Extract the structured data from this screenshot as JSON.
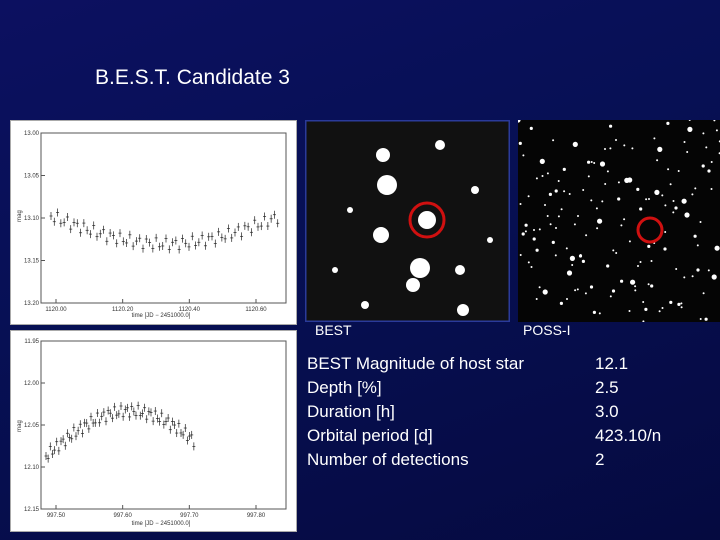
{
  "header": {
    "title": "B.E.S.T. Candidate 3"
  },
  "plots": [
    {
      "y_ticks": [
        "13.00",
        "13.05",
        "13.10",
        "13.15",
        "13.20"
      ],
      "x_ticks": [
        "1120.00",
        "1120.20",
        "1120.40",
        "1120.60"
      ],
      "x_label": "time [JD − 2451000.0]",
      "y_label": "mag"
    },
    {
      "y_ticks": [
        "11.95",
        "12.00",
        "12.05",
        "12.10",
        "12.15"
      ],
      "x_ticks": [
        "997.50",
        "997.60",
        "997.70",
        "997.80"
      ],
      "x_label": "time [JD − 2451000.0]",
      "y_label": "mag"
    }
  ],
  "images": [
    {
      "caption": "BEST"
    },
    {
      "caption": "POSS-I"
    }
  ],
  "table": {
    "rows": [
      [
        "BEST Magnitude of host star",
        "12.1"
      ],
      [
        "Depth [%]",
        "2.5"
      ],
      [
        "Duration [h]",
        "3.0"
      ],
      [
        "Orbital period [d]",
        "423.10/n"
      ],
      [
        "Number of detections",
        "2"
      ]
    ]
  }
}
